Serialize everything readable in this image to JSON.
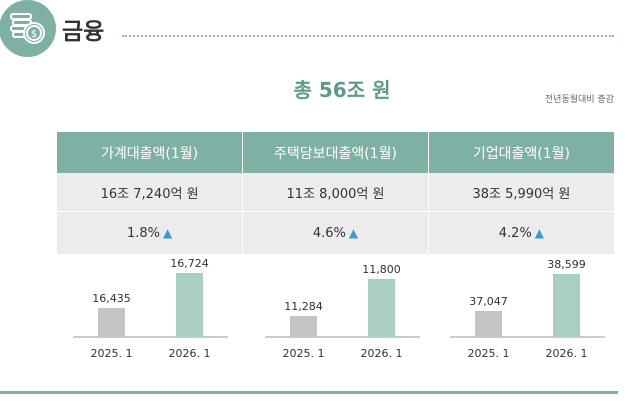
{
  "header": {
    "title": "금융",
    "icon": "coins-dollar-icon"
  },
  "summary": {
    "total": "총 56조 원",
    "note": "전년동월대비 증감"
  },
  "table": {
    "columns": [
      "가계대출액(1월)",
      "주택담보대출액(1월)",
      "기업대출액(1월)"
    ],
    "amounts": [
      "16조 7,240억 원",
      "11조 8,000억 원",
      "38조 5,990억 원"
    ],
    "changes": [
      "1.8%",
      "4.6%",
      "4.2%"
    ],
    "change_icon": "triangle-up-icon"
  },
  "colors": {
    "accent": "#7fb0a4",
    "bar_prev": "#c4c4c4",
    "bar_curr": "#a9cfc4",
    "up": "#3a9ad6",
    "total_text": "#5e9a8c"
  },
  "chart_data": [
    {
      "type": "bar",
      "categories": [
        "2025. 1",
        "2026. 1"
      ],
      "values": [
        16435,
        16724
      ],
      "labels": [
        "16,435",
        "16,724"
      ],
      "ylim": [
        16195,
        16773
      ]
    },
    {
      "type": "bar",
      "categories": [
        "2025. 1",
        "2026. 1"
      ],
      "values": [
        11284,
        11800
      ],
      "labels": [
        "11,284",
        "11,800"
      ],
      "ylim": [
        10991,
        11967
      ]
    },
    {
      "type": "bar",
      "categories": [
        "2025. 1",
        "2026. 1"
      ],
      "values": [
        37047,
        38599
      ],
      "labels": [
        "37,047",
        "38,599"
      ],
      "ylim": [
        35956,
        38892
      ]
    }
  ]
}
